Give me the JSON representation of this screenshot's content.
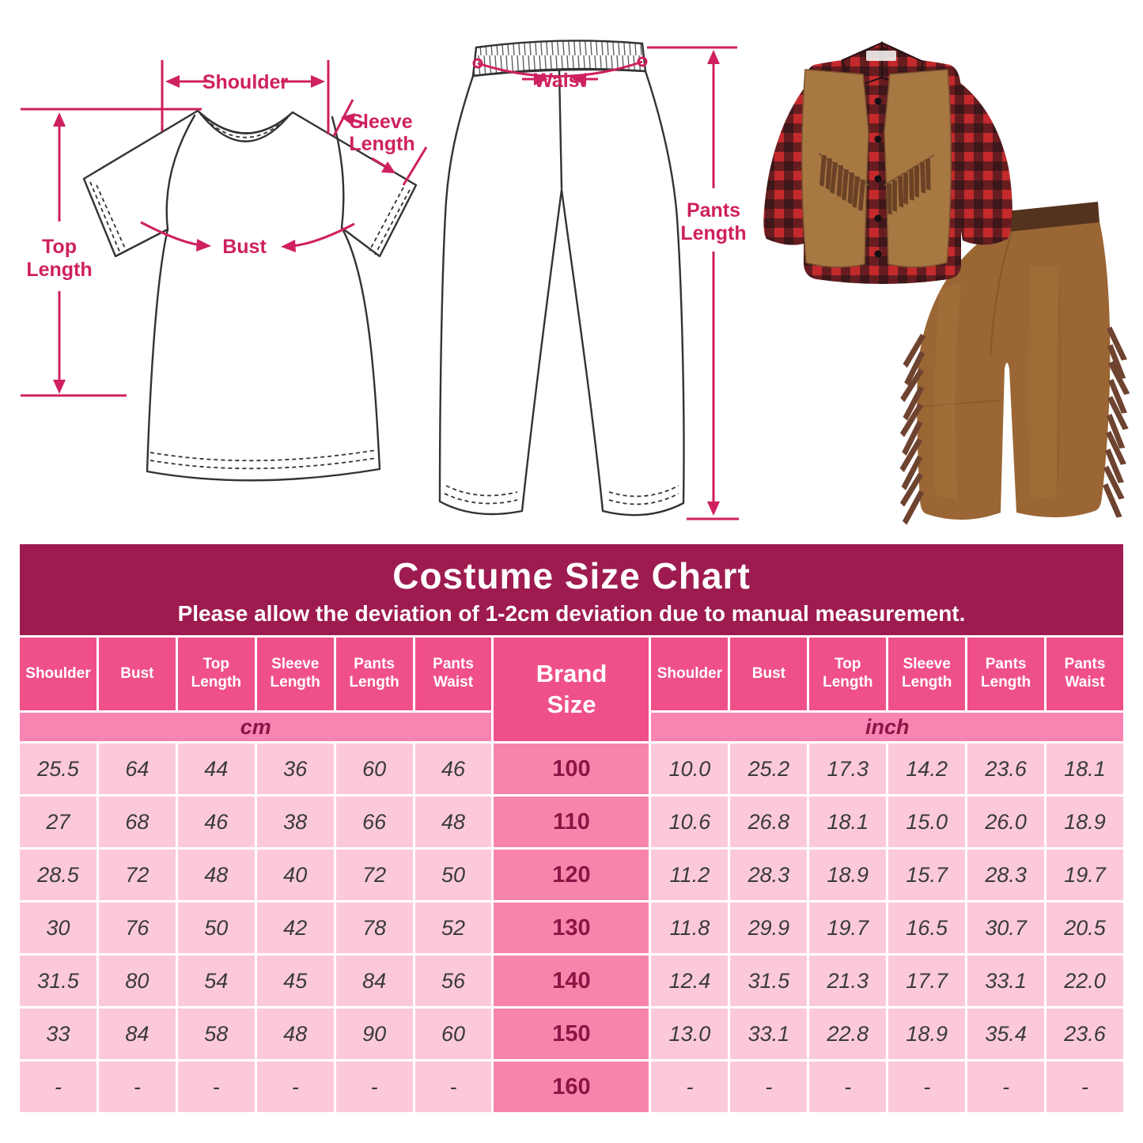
{
  "diagram_labels": {
    "shoulder": "Shoulder",
    "sleeve1": "Sleeve",
    "sleeve2": "Length",
    "top1": "Top",
    "top2": "Length",
    "bust": "Bust",
    "waist": "Waist",
    "pants1": "Pants",
    "pants2": "Length"
  },
  "chart_data": {
    "type": "table",
    "title": "Costume Size Chart",
    "subtitle": "Please allow the deviation of 1-2cm deviation due to manual measurement.",
    "measure_headers": [
      "Shoulder",
      "Bust",
      "Top Length",
      "Sleeve Length",
      "Pants Length",
      "Pants Waist"
    ],
    "brand_header": [
      "Brand",
      "Size"
    ],
    "unit_labels": [
      "cm",
      "inch"
    ],
    "brand_sizes": [
      "100",
      "110",
      "120",
      "130",
      "140",
      "150",
      "160"
    ],
    "rows_cm": [
      [
        "25.5",
        "64",
        "44",
        "36",
        "60",
        "46"
      ],
      [
        "27",
        "68",
        "46",
        "38",
        "66",
        "48"
      ],
      [
        "28.5",
        "72",
        "48",
        "40",
        "72",
        "50"
      ],
      [
        "30",
        "76",
        "50",
        "42",
        "78",
        "52"
      ],
      [
        "31.5",
        "80",
        "54",
        "45",
        "84",
        "56"
      ],
      [
        "33",
        "84",
        "58",
        "48",
        "90",
        "60"
      ],
      [
        "-",
        "-",
        "-",
        "-",
        "-",
        "-"
      ]
    ],
    "rows_inch": [
      [
        "10.0",
        "25.2",
        "17.3",
        "14.2",
        "23.6",
        "18.1"
      ],
      [
        "10.6",
        "26.8",
        "18.1",
        "15.0",
        "26.0",
        "18.9"
      ],
      [
        "11.2",
        "28.3",
        "18.9",
        "15.7",
        "28.3",
        "19.7"
      ],
      [
        "11.8",
        "29.9",
        "19.7",
        "16.5",
        "30.7",
        "20.5"
      ],
      [
        "12.4",
        "31.5",
        "21.3",
        "17.7",
        "33.1",
        "22.0"
      ],
      [
        "13.0",
        "33.1",
        "22.8",
        "18.9",
        "35.4",
        "23.6"
      ],
      [
        "-",
        "-",
        "-",
        "-",
        "-",
        "-"
      ]
    ]
  },
  "colors": {
    "maroon": "#9e1b50",
    "th_pink": "#ef5089",
    "unit_pink": "#f884b2",
    "row_pink": "#fcc9dc",
    "brand_cell_pink": "#f784ab",
    "annotation_crimson": "#cf205f",
    "maroon_text": "#8c1545",
    "data_text": "#3a3a3a",
    "plaid_red": "#c42a2c",
    "plaid_black": "#1c1216",
    "vest_brown": "#a87843",
    "fringe_brown": "#6e4330",
    "chaps_brown": "#9a6634",
    "belt_brown": "#54331e"
  }
}
